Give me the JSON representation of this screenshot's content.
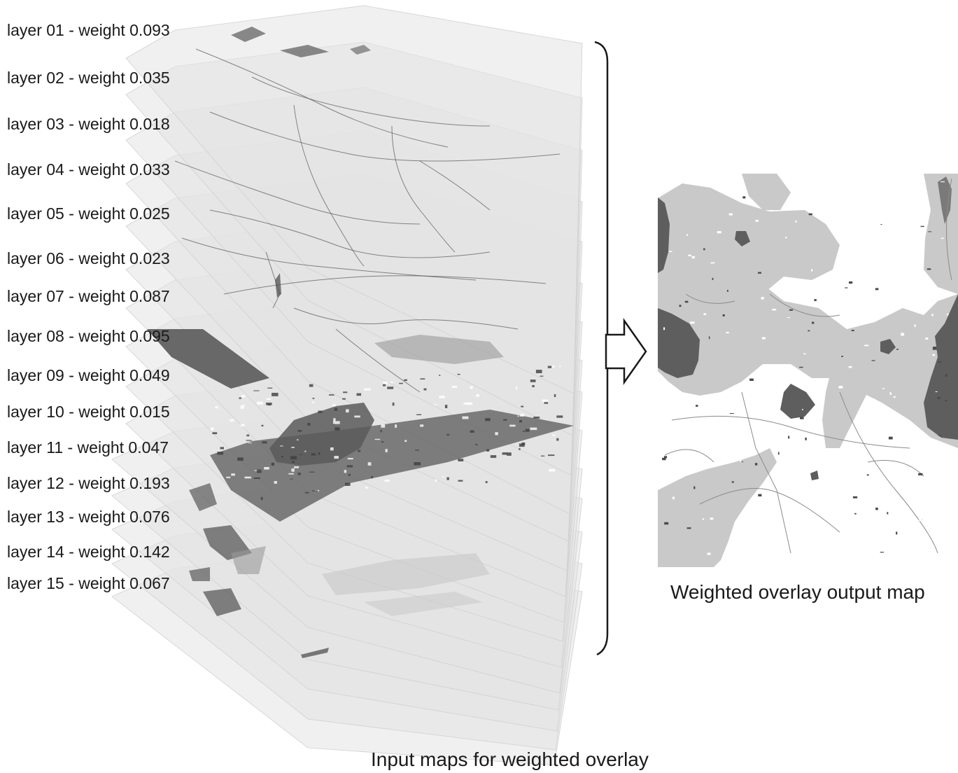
{
  "layers": [
    {
      "label": "layer 01 - weight 0.093"
    },
    {
      "label": "layer 02 - weight 0.035"
    },
    {
      "label": "layer 03 - weight 0.018"
    },
    {
      "label": "layer 04 - weight 0.033"
    },
    {
      "label": "layer 05 - weight 0.025"
    },
    {
      "label": "layer 06 - weight 0.023"
    },
    {
      "label": "layer 07 - weight 0.087"
    },
    {
      "label": "layer 08 - weight 0.095"
    },
    {
      "label": "layer 09 - weight 0.049"
    },
    {
      "label": "layer 10 - weight 0.015"
    },
    {
      "label": "layer 11 - weight 0.047"
    },
    {
      "label": "layer 12 - weight 0.193"
    },
    {
      "label": "layer 13 - weight 0.076"
    },
    {
      "label": "layer 14 - weight 0.142"
    },
    {
      "label": "layer 15 - weight 0.067"
    }
  ],
  "output_caption": "Weighted overlay output map",
  "input_caption": "Input maps for weighted overlay",
  "colors": {
    "layer_fill": "#e3e3e3",
    "dark_region": "#5a5a5a",
    "mid_region": "#9a9a9a",
    "light_region": "#c8c8c8",
    "line": "#1a1a1a"
  }
}
